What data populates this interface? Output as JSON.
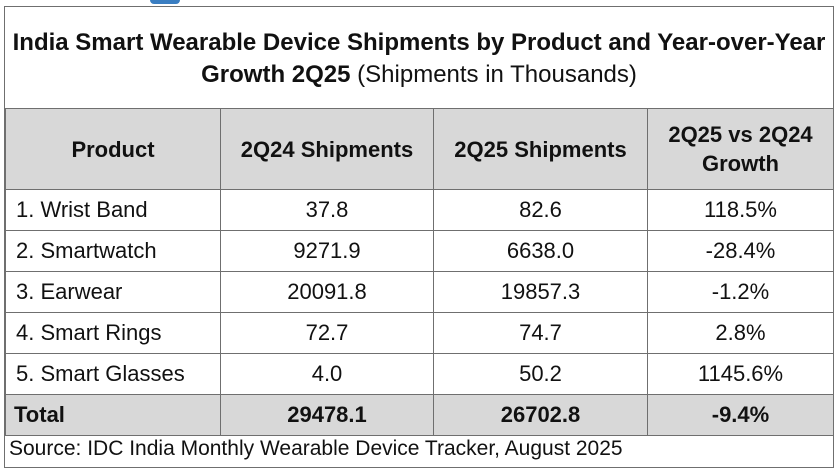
{
  "title": {
    "bold": "India Smart Wearable Device Shipments by Product and Year-over-Year Growth 2Q25",
    "sub": "(Shipments in Thousands)"
  },
  "chart_data": {
    "type": "table",
    "headers": [
      "Product",
      "2Q24 Shipments",
      "2Q25 Shipments",
      "2Q25 vs 2Q24 Growth"
    ],
    "rows": [
      [
        "1. Wrist Band",
        "37.8",
        "82.6",
        "118.5%"
      ],
      [
        "2. Smartwatch",
        "9271.9",
        "6638.0",
        "-28.4%"
      ],
      [
        "3. Earwear",
        "20091.8",
        "19857.3",
        "-1.2%"
      ],
      [
        "4. Smart Rings",
        "72.7",
        "74.7",
        "2.8%"
      ],
      [
        "5. Smart Glasses",
        "4.0",
        "50.2",
        "1145.6%"
      ]
    ],
    "total": [
      "Total",
      "29478.1",
      "26702.8",
      "-9.4%"
    ]
  },
  "source": "Source: IDC India Monthly Wearable Device Tracker, August 2025",
  "colors": {
    "header_bg": "#d8d8d8",
    "border": "#6f6f6f",
    "accent": "#3a7ec2"
  }
}
